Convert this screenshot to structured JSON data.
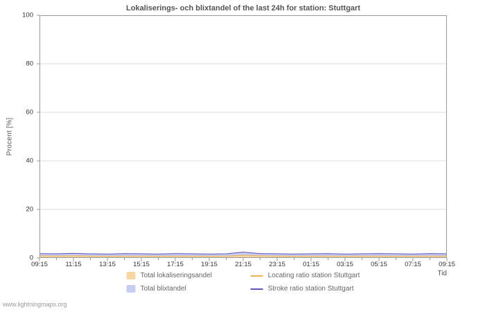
{
  "watermark": "www.lightningmaps.org",
  "chart_data": {
    "type": "area",
    "title": "Lokaliserings- och blixtandel of the last 24h for station: Stuttgart",
    "xlabel": "Tid",
    "ylabel": "Procent  [%]",
    "ylim": [
      0,
      100
    ],
    "yticks": [
      0,
      20,
      40,
      60,
      80,
      100
    ],
    "x_tick_labels": [
      "09:15",
      "11:15",
      "13:15",
      "15:15",
      "17:15",
      "19:15",
      "21:15",
      "23:15",
      "01:15",
      "03:15",
      "05:15",
      "07:15",
      "09:15"
    ],
    "grid": true,
    "legend_position": "bottom",
    "series": [
      {
        "name": "Total lokaliseringsandel",
        "kind": "area",
        "color": "#f5d7a4",
        "values": [
          0.8,
          0.7,
          0.8,
          0.7,
          0.6,
          0.7,
          0.7,
          0.6,
          0.7,
          0.7,
          0.6,
          0.7,
          1.0,
          0.8,
          0.7,
          0.6,
          0.7,
          0.7,
          0.6,
          0.7,
          0.7,
          0.6,
          0.7,
          0.7,
          0.7
        ]
      },
      {
        "name": "Total blixtandel",
        "kind": "area",
        "color": "#c8cdf2",
        "values": [
          1.8,
          1.7,
          1.9,
          1.7,
          1.6,
          1.8,
          1.7,
          1.6,
          1.8,
          1.7,
          1.6,
          1.7,
          2.4,
          1.8,
          1.7,
          1.6,
          1.7,
          1.8,
          1.6,
          1.7,
          1.8,
          1.7,
          1.6,
          1.8,
          1.7
        ]
      },
      {
        "name": "Locating ratio station Stuttgart",
        "kind": "line",
        "color": "#e9b35c",
        "values": [
          0.9,
          0.8,
          0.9,
          0.8,
          0.7,
          0.8,
          0.8,
          0.7,
          0.8,
          0.8,
          0.7,
          0.8,
          1.1,
          0.9,
          0.8,
          0.7,
          0.8,
          0.8,
          0.7,
          0.8,
          0.8,
          0.7,
          0.8,
          0.8,
          0.8
        ]
      },
      {
        "name": "Stroke ratio station Stuttgart",
        "kind": "line",
        "color": "#5c54b8",
        "values": [
          1.8,
          1.7,
          1.9,
          1.7,
          1.6,
          1.8,
          1.7,
          1.6,
          1.8,
          1.7,
          1.6,
          1.7,
          2.4,
          1.8,
          1.7,
          1.6,
          1.7,
          1.8,
          1.6,
          1.7,
          1.8,
          1.7,
          1.6,
          1.8,
          1.7
        ]
      }
    ]
  }
}
